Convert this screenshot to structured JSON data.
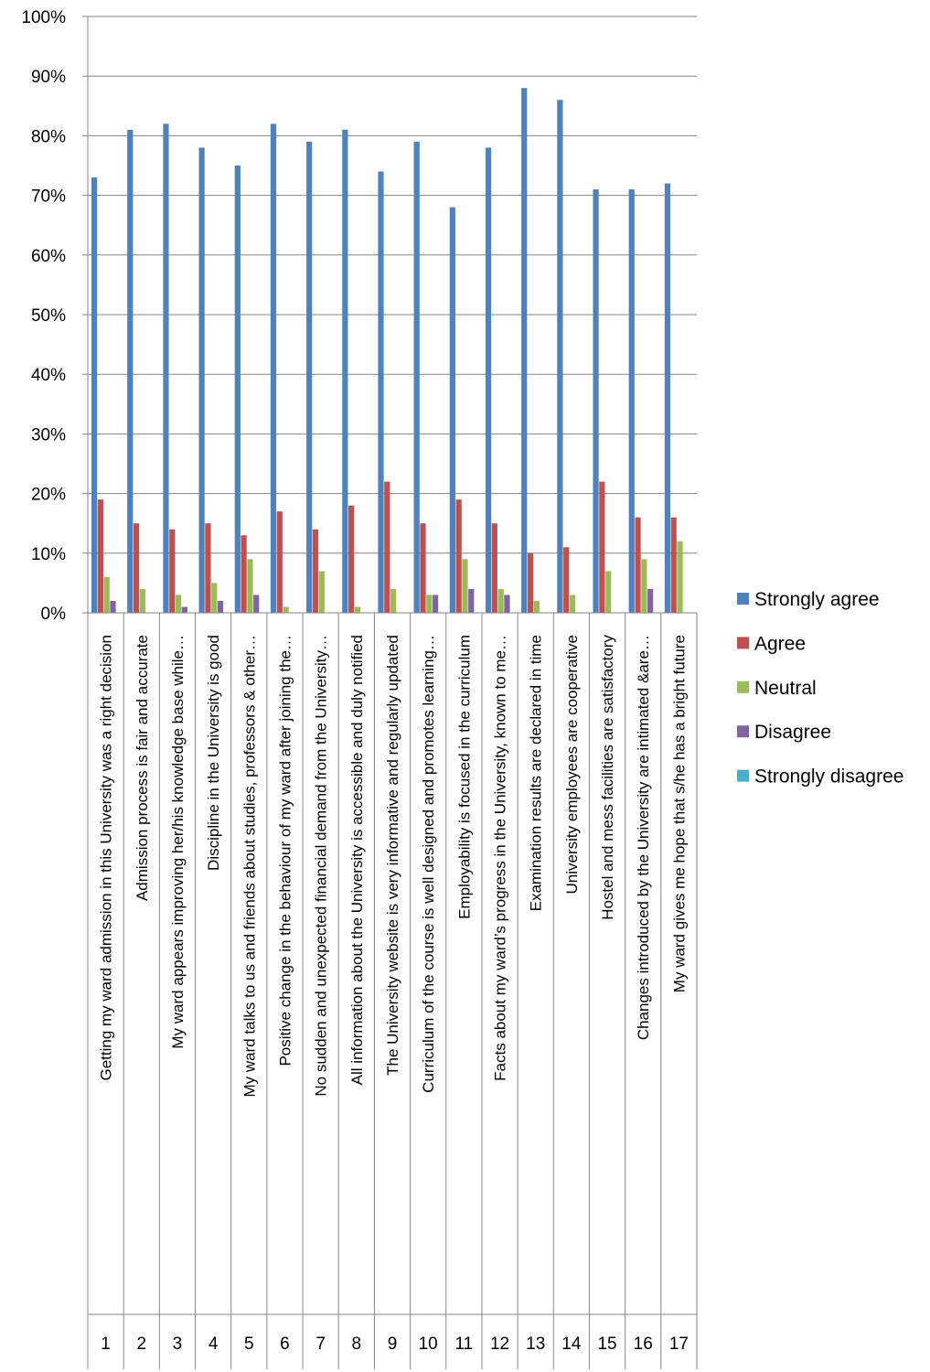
{
  "chart_data": {
    "type": "bar",
    "ylim": [
      0,
      100
    ],
    "y_ticks": [
      "0%",
      "10%",
      "20%",
      "30%",
      "40%",
      "50%",
      "60%",
      "70%",
      "80%",
      "90%",
      "100%"
    ],
    "grid": true,
    "legend_position": "right",
    "numbers": [
      "1",
      "2",
      "3",
      "4",
      "5",
      "6",
      "7",
      "8",
      "9",
      "10",
      "11",
      "12",
      "13",
      "14",
      "15",
      "16",
      "17"
    ],
    "categories": [
      "Getting my ward admission in this University was a right decision",
      "Admission process is fair and accurate",
      "My ward appears improving her/his knowledge base while…",
      "Discipline in the University is good",
      "My ward talks to us and friends about studies, professors & other…",
      "Positive change in the behaviour of my ward after joining the…",
      "No sudden and unexpected financial demand from the University…",
      "All information about the University is accessible and duly notified",
      "The University website is very informative and regularly updated",
      "Curriculum of the course is well designed and promotes learning…",
      "Employability is focused in the curriculum",
      "Facts about my ward’s progress in the University, known to me…",
      "Examination results are declared in time",
      "University employees are cooperative",
      "Hostel and mess facilities are satisfactory",
      "Changes introduced by the University are intimated &are…",
      "My ward gives me hope that s/he has a bright future"
    ],
    "series": [
      {
        "name": "Strongly agree",
        "color": "#4F81BD",
        "values": [
          73,
          81,
          82,
          78,
          75,
          82,
          79,
          81,
          74,
          79,
          68,
          78,
          88,
          86,
          71,
          71,
          72
        ]
      },
      {
        "name": "Agree",
        "color": "#C0504D",
        "values": [
          19,
          15,
          14,
          15,
          13,
          17,
          14,
          18,
          22,
          15,
          19,
          15,
          10,
          11,
          22,
          16,
          16
        ]
      },
      {
        "name": "Neutral",
        "color": "#9BBB59",
        "values": [
          6,
          4,
          3,
          5,
          9,
          1,
          7,
          1,
          4,
          3,
          9,
          4,
          2,
          3,
          7,
          9,
          12
        ]
      },
      {
        "name": "Disagree",
        "color": "#8064A2",
        "values": [
          2,
          0,
          1,
          2,
          3,
          0,
          0,
          0,
          0,
          3,
          4,
          3,
          0,
          0,
          0,
          4,
          0
        ]
      },
      {
        "name": "Strongly disagree",
        "color": "#4BACC6",
        "values": [
          0,
          0,
          0,
          0,
          0,
          0,
          0,
          0,
          0,
          0,
          0,
          0,
          0,
          0,
          0,
          0,
          0
        ]
      }
    ]
  }
}
